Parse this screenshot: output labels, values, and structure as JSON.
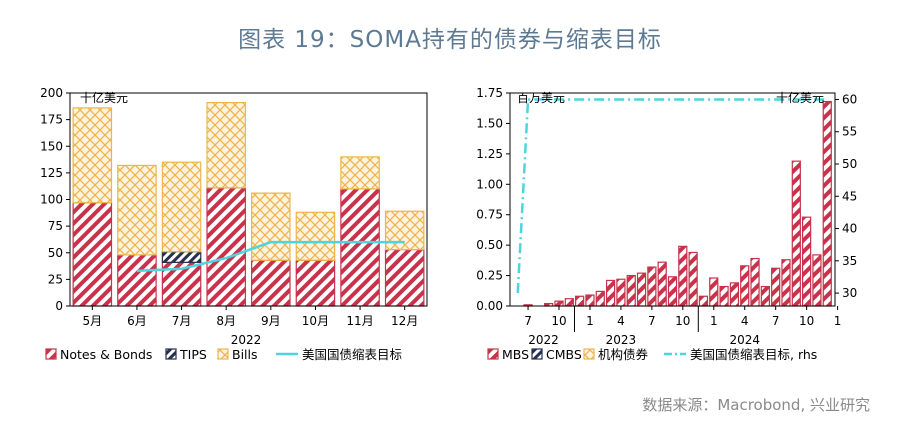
{
  "page": {
    "title": "图表 19：SOMA持有的债券与缩表目标",
    "source": "数据来源：Macrobond, 兴业研究"
  },
  "colors": {
    "title": "#5e7a93",
    "hatch_red": "#c8334b",
    "hatch_orange": "#f0b44c",
    "hatch_navy": "#26304f",
    "target_line": "#4fd3dd"
  },
  "chart_data": [
    {
      "type": "bar",
      "stacked": true,
      "unit_label": "十亿美元",
      "categories": [
        "5月",
        "6月",
        "7月",
        "8月",
        "9月",
        "10月",
        "11月",
        "12月"
      ],
      "year_label": "2022",
      "ylim": [
        0,
        200
      ],
      "yticks": [
        0,
        25,
        50,
        75,
        100,
        125,
        150,
        175,
        200
      ],
      "series": [
        {
          "name": "Notes & Bonds",
          "kind": "bar",
          "pattern": "diagonal",
          "values": [
            97,
            48,
            41,
            111,
            43,
            43,
            110,
            53
          ]
        },
        {
          "name": "TIPS",
          "kind": "bar",
          "pattern": "diagonal-dark",
          "values": [
            0,
            0,
            10,
            0,
            0,
            0,
            0,
            0
          ]
        },
        {
          "name": "Bills",
          "kind": "bar",
          "pattern": "crosshatch",
          "values": [
            89,
            84,
            84,
            80,
            63,
            45,
            30,
            36
          ]
        },
        {
          "name": "美国国债缩表目标",
          "kind": "line",
          "values": [
            null,
            33,
            35,
            45,
            60,
            60,
            60,
            60
          ]
        }
      ],
      "legend_position": "bottom"
    },
    {
      "type": "bar",
      "unit_label_left": "百万美元",
      "unit_label_right": "十亿美元",
      "ylim_left": [
        0,
        1.75
      ],
      "yticks_left": [
        "0.00",
        "0.25",
        "0.50",
        "0.75",
        "1.00",
        "1.25",
        "1.50",
        "1.75"
      ],
      "ylim_right": [
        28,
        61
      ],
      "yticks_right": [
        30,
        35,
        40,
        45,
        50,
        55,
        60
      ],
      "x_start": "2022-06",
      "x_end": "2025-01",
      "xtick_labels": [
        "7",
        "10",
        "1",
        "4",
        "7",
        "10",
        "1",
        "4",
        "7",
        "10",
        "1"
      ],
      "year_labels": [
        "2022",
        "2023",
        "2024"
      ],
      "series": [
        {
          "name": "MBS",
          "kind": "bar",
          "pattern": "diagonal",
          "values": [
            0.0,
            0.01,
            0.0,
            0.02,
            0.04,
            0.06,
            0.08,
            0.09,
            0.12,
            0.21,
            0.22,
            0.25,
            0.27,
            0.32,
            0.36,
            0.24,
            0.49,
            0.44,
            0.08,
            0.23,
            0.16,
            0.19,
            0.33,
            0.39,
            0.16,
            0.31,
            0.38,
            1.19,
            0.73,
            0.42,
            1.68
          ]
        },
        {
          "name": "CMBS",
          "kind": "bar",
          "pattern": "diagonal-dark",
          "values": []
        },
        {
          "name": "机构债券",
          "kind": "bar",
          "pattern": "crosshatch",
          "values": []
        },
        {
          "name": "美国国债缩表目标, rhs",
          "kind": "line",
          "style": "dash-dot",
          "axis": "right",
          "values": [
            30,
            60,
            60,
            60,
            60,
            60,
            60,
            60,
            60,
            60,
            60,
            60,
            60,
            60,
            60,
            60,
            60,
            60,
            60,
            60,
            60,
            60,
            60,
            60,
            60,
            60,
            60,
            60,
            60,
            60,
            60
          ]
        }
      ],
      "legend_position": "bottom"
    }
  ]
}
